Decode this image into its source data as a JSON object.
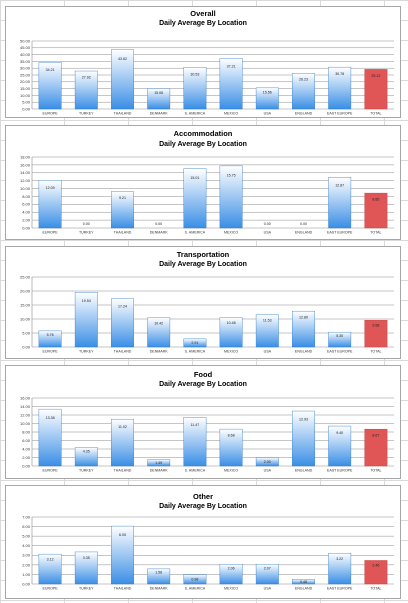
{
  "chart_data": [
    {
      "type": "bar",
      "title": "Overall",
      "subtitle": "Daily Average By Location",
      "categories": [
        "EUROPE",
        "TURKEY",
        "THAILAND",
        "DENMARK",
        "S. AMERICA",
        "MEXICO",
        "USA",
        "ENGLAND",
        "EAST EUROPE",
        "TOTAL"
      ],
      "values": [
        34.21,
        27.92,
        43.62,
        15.06,
        30.53,
        37.21,
        15.56,
        26.23,
        30.78,
        29.12
      ],
      "value_labels": [
        "34.21",
        "27.92",
        "43.62",
        "15.06",
        "30.53",
        "37.21",
        "15.56",
        "26.23",
        "30.78",
        "29.12"
      ],
      "ylim": [
        0,
        50
      ],
      "yticks": [
        "0.00",
        "5.00",
        "10.00",
        "15.00",
        "20.00",
        "25.00",
        "30.00",
        "35.00",
        "40.00",
        "45.00",
        "50.00"
      ],
      "grid": true,
      "bar_color": "#3a8ee6",
      "total_color": "#e05555"
    },
    {
      "type": "bar",
      "title": "Accommodation",
      "subtitle": "Daily Average By Location",
      "categories": [
        "EUROPE",
        "TURKEY",
        "THAILAND",
        "DENMARK",
        "S. AMERICA",
        "MEXICO",
        "USA",
        "ENGLAND",
        "EAST EUROPE",
        "TOTAL"
      ],
      "values": [
        12.09,
        0,
        9.21,
        0,
        15.01,
        15.75,
        0,
        0,
        12.87,
        8.85
      ],
      "value_labels": [
        "12.09",
        "0.00",
        "9.21",
        "0.00",
        "15.01",
        "15.75",
        "0.00",
        "0.00",
        "12.87",
        "8.85"
      ],
      "ylim": [
        0,
        18
      ],
      "yticks": [
        "0.00",
        "2.00",
        "4.00",
        "6.00",
        "8.00",
        "10.00",
        "12.00",
        "14.00",
        "16.00",
        "18.00"
      ],
      "grid": true,
      "bar_color": "#3a8ee6",
      "total_color": "#e05555"
    },
    {
      "type": "bar",
      "title": "Transportation",
      "subtitle": "Daily Average By Location",
      "categories": [
        "EUROPE",
        "TURKEY",
        "THAILAND",
        "DENMARK",
        "S. AMERICA",
        "MEXICO",
        "USA",
        "ENGLAND",
        "EAST EUROPE",
        "TOTAL"
      ],
      "values": [
        5.76,
        19.54,
        17.24,
        10.42,
        2.91,
        10.48,
        11.53,
        12.8,
        5.3,
        9.58
      ],
      "value_labels": [
        "5.76",
        "19.54",
        "17.24",
        "10.42",
        "2.91",
        "10.48",
        "11.53",
        "12.80",
        "5.30",
        "9.58"
      ],
      "ylim": [
        0,
        25
      ],
      "yticks": [
        "0.00",
        "5.00",
        "10.00",
        "15.00",
        "20.00",
        "25.00"
      ],
      "grid": true,
      "bar_color": "#3a8ee6",
      "total_color": "#e05555"
    },
    {
      "type": "bar",
      "title": "Food",
      "subtitle": "Daily Average By Location",
      "categories": [
        "EUROPE",
        "TURKEY",
        "THAILAND",
        "DENMARK",
        "S. AMERICA",
        "MEXICO",
        "USA",
        "ENGLAND",
        "EAST EUROPE",
        "TOTAL"
      ],
      "values": [
        13.38,
        4.35,
        11.02,
        1.49,
        11.47,
        8.68,
        2.0,
        12.93,
        9.4,
        8.67
      ],
      "value_labels": [
        "13.38",
        "4.35",
        "11.02",
        "1.49",
        "11.47",
        "8.68",
        "2.00",
        "12.93",
        "9.40",
        "8.67"
      ],
      "ylim": [
        0,
        16
      ],
      "yticks": [
        "0.00",
        "2.00",
        "4.00",
        "6.00",
        "8.00",
        "10.00",
        "12.00",
        "14.00",
        "16.00"
      ],
      "grid": true,
      "bar_color": "#3a8ee6",
      "total_color": "#e05555"
    },
    {
      "type": "bar",
      "title": "Other",
      "subtitle": "Daily Average By Location",
      "categories": [
        "EUROPE",
        "TURKEY",
        "THAILAND",
        "DENMARK",
        "S. AMERICA",
        "MEXICO",
        "USA",
        "ENGLAND",
        "EAST EUROPE",
        "TOTAL"
      ],
      "values": [
        3.12,
        3.35,
        6.05,
        1.58,
        0.98,
        2.06,
        2.07,
        0.48,
        3.22,
        2.46
      ],
      "value_labels": [
        "3.12",
        "3.35",
        "6.05",
        "1.58",
        "0.98",
        "2.06",
        "2.07",
        "0.48",
        "3.22",
        "2.46"
      ],
      "ylim": [
        0,
        7
      ],
      "yticks": [
        "0.00",
        "1.00",
        "2.00",
        "3.00",
        "4.00",
        "5.00",
        "6.00",
        "7.00"
      ],
      "grid": true,
      "bar_color": "#3a8ee6",
      "total_color": "#e05555"
    }
  ]
}
